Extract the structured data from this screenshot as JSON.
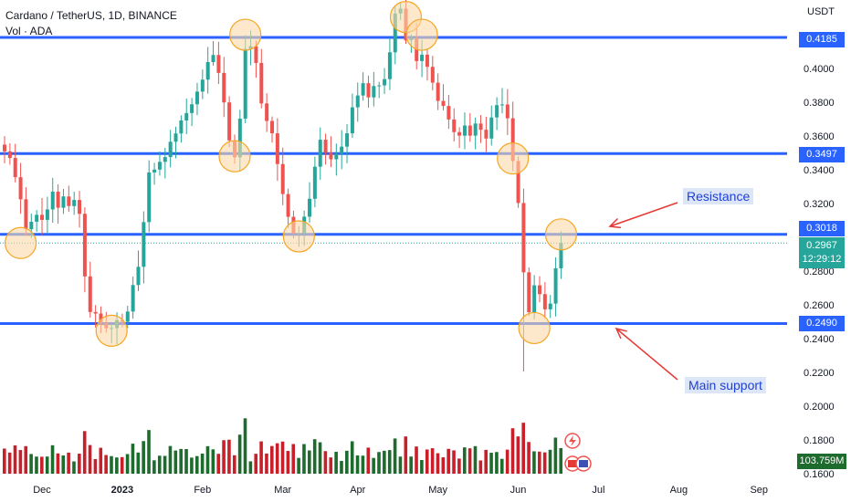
{
  "header": {
    "symbol_line": "Cardano / TetherUS, 1D, BINANCE",
    "volume_line": "Vol · ADA"
  },
  "axis": {
    "unit": "USDT"
  },
  "annotations": {
    "resistance": "Resistance",
    "support": "Main support"
  },
  "current": {
    "price": "0.2967",
    "countdown": "12:29:12"
  },
  "volume_label": "103.759M",
  "colors": {
    "up": "#26a69a",
    "down": "#ef5350",
    "level": "#2962ff",
    "vol_up": "#1e6b2e",
    "vol_down": "#c7202a",
    "circle_fill": "#fcd9a8",
    "circle_stroke": "#f5a623",
    "arrow": "#e53935"
  },
  "chart_data": {
    "type": "candlestick",
    "title": "Cardano / TetherUS, 1D, BINANCE",
    "y_range": [
      0.16,
      0.44
    ],
    "y_ticks": [
      "0.4000",
      "0.3800",
      "0.3600",
      "0.3400",
      "0.3200",
      "0.2800",
      "0.2600",
      "0.2400",
      "0.2200",
      "0.2000",
      "0.1800",
      "0.1600"
    ],
    "x_ticks": [
      "Dec",
      "2023",
      "Feb",
      "Mar",
      "Apr",
      "May",
      "Jun",
      "Jul",
      "Aug",
      "Sep"
    ],
    "levels": [
      {
        "label": "0.4185",
        "value": 0.4185
      },
      {
        "label": "0.3497",
        "value": 0.3497
      },
      {
        "label": "0.3018",
        "value": 0.3018
      },
      {
        "label": "0.2490",
        "value": 0.249
      }
    ],
    "current_price": 0.2967,
    "circles": [
      {
        "day": 3,
        "price": 0.2967
      },
      {
        "day": 20,
        "price": 0.2447
      },
      {
        "day": 43,
        "price": 0.3481
      },
      {
        "day": 45,
        "price": 0.4201
      },
      {
        "day": 55,
        "price": 0.3006
      },
      {
        "day": 75,
        "price": 0.4306
      },
      {
        "day": 78,
        "price": 0.4201
      },
      {
        "day": 95,
        "price": 0.3468
      },
      {
        "day": 99,
        "price": 0.2463
      },
      {
        "day": 104,
        "price": 0.3018
      }
    ],
    "daily_close": [
      0.351,
      0.3471,
      0.3357,
      0.3226,
      0.3049,
      0.3093,
      0.3134,
      0.3104,
      0.3166,
      0.3271,
      0.3176,
      0.3243,
      0.3186,
      0.3222,
      0.314,
      0.2769,
      0.2558,
      0.2549,
      0.2493,
      0.2462,
      0.2463,
      0.251,
      0.25,
      0.2561,
      0.2718,
      0.2826,
      0.3091,
      0.3385,
      0.3402,
      0.3448,
      0.3476,
      0.3567,
      0.3616,
      0.3693,
      0.3737,
      0.3789,
      0.3864,
      0.3935,
      0.4039,
      0.4081,
      0.3975,
      0.38,
      0.3575,
      0.3475,
      0.3704,
      0.4117,
      0.4133,
      0.4034,
      0.3794,
      0.369,
      0.3617,
      0.3435,
      0.3257,
      0.3122,
      0.3023,
      0.3025,
      0.3123,
      0.3229,
      0.3419,
      0.3579,
      0.3502,
      0.3463,
      0.3496,
      0.3538,
      0.3617,
      0.3771,
      0.3841,
      0.3914,
      0.383,
      0.3897,
      0.3901,
      0.3938,
      0.4097,
      0.4327,
      0.4356,
      0.4168,
      0.4176,
      0.4045,
      0.4083,
      0.4011,
      0.3917,
      0.3809,
      0.3779,
      0.3699,
      0.3624,
      0.3603,
      0.3663,
      0.3603,
      0.3675,
      0.3638,
      0.3586,
      0.3711,
      0.3784,
      0.3788,
      0.3706,
      0.3453,
      0.3204,
      0.2793,
      0.2557,
      0.2716,
      0.2664,
      0.2574,
      0.2608,
      0.2817,
      0.2967
    ]
  }
}
